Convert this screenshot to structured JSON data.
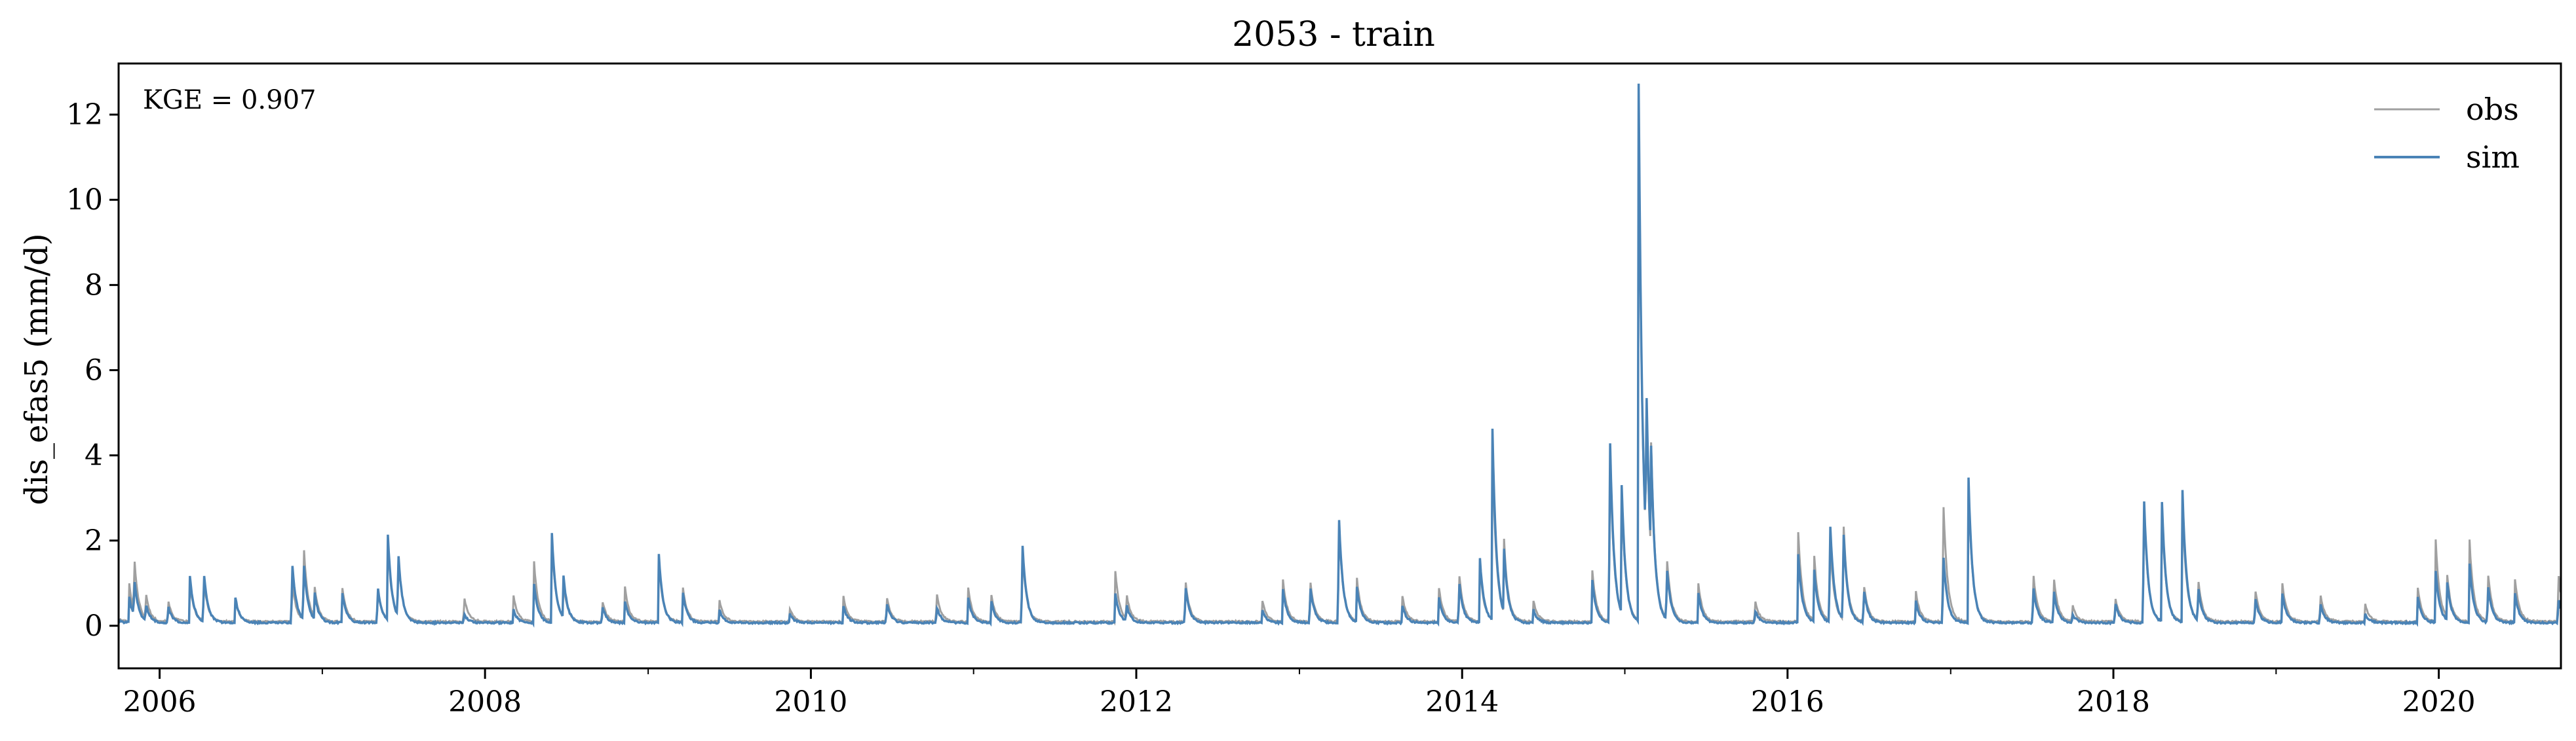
{
  "chart_data": {
    "type": "line",
    "title": "2053 - train",
    "xlabel": "",
    "ylabel": "dis_efas5 (mm/d)",
    "annotation": "KGE = 0.907",
    "xlim": [
      "2005-10-01",
      "2020-10-01"
    ],
    "ylim": [
      -1,
      13.2
    ],
    "x_ticks": [
      "2006",
      "2008",
      "2010",
      "2012",
      "2014",
      "2016",
      "2018",
      "2020"
    ],
    "y_ticks": [
      0,
      2,
      4,
      6,
      8,
      10,
      12
    ],
    "grid": false,
    "legend_position": "top-right",
    "series": [
      {
        "name": "obs",
        "color": "#a0a0a0",
        "baseline": 0.08,
        "points": [
          [
            "2005-10-01",
            0.05
          ],
          [
            "2005-10-25",
            0.9
          ],
          [
            "2005-11-05",
            1.3
          ],
          [
            "2005-12-01",
            0.6
          ],
          [
            "2006-01-20",
            0.5
          ],
          [
            "2006-03-10",
            0.9
          ],
          [
            "2006-04-10",
            1.0
          ],
          [
            "2006-06-20",
            0.5
          ],
          [
            "2006-10-25",
            1.0
          ],
          [
            "2006-11-20",
            1.8
          ],
          [
            "2006-12-15",
            0.7
          ],
          [
            "2007-02-15",
            0.8
          ],
          [
            "2007-05-05",
            0.8
          ],
          [
            "2007-05-28",
            1.8
          ],
          [
            "2007-06-20",
            1.5
          ],
          [
            "2007-11-15",
            0.6
          ],
          [
            "2008-03-05",
            0.6
          ],
          [
            "2008-04-20",
            1.4
          ],
          [
            "2008-05-30",
            1.9
          ],
          [
            "2008-06-25",
            0.8
          ],
          [
            "2008-09-20",
            0.5
          ],
          [
            "2008-11-10",
            0.8
          ],
          [
            "2009-01-25",
            1.4
          ],
          [
            "2009-03-20",
            0.8
          ],
          [
            "2009-06-10",
            0.5
          ],
          [
            "2009-11-15",
            0.3
          ],
          [
            "2010-03-15",
            0.6
          ],
          [
            "2010-06-20",
            0.6
          ],
          [
            "2010-10-10",
            0.7
          ],
          [
            "2010-12-20",
            0.8
          ],
          [
            "2011-02-10",
            0.6
          ],
          [
            "2011-04-20",
            1.8
          ],
          [
            "2011-11-15",
            1.2
          ],
          [
            "2011-12-10",
            0.6
          ],
          [
            "2012-04-20",
            1.0
          ],
          [
            "2012-10-10",
            0.5
          ],
          [
            "2012-11-25",
            1.0
          ],
          [
            "2013-01-25",
            1.0
          ],
          [
            "2013-03-30",
            2.5
          ],
          [
            "2013-05-10",
            1.0
          ],
          [
            "2013-08-20",
            0.6
          ],
          [
            "2013-11-10",
            0.8
          ],
          [
            "2013-12-25",
            1.2
          ],
          [
            "2014-02-10",
            1.3
          ],
          [
            "2014-03-10",
            4.0
          ],
          [
            "2014-04-05",
            1.7
          ],
          [
            "2014-06-10",
            0.5
          ],
          [
            "2014-10-20",
            1.2
          ],
          [
            "2014-11-28",
            4.3
          ],
          [
            "2014-12-25",
            2.8
          ],
          [
            "2015-02-01",
            12.3
          ],
          [
            "2015-02-18",
            3.6
          ],
          [
            "2015-03-01",
            2.6
          ],
          [
            "2015-04-05",
            1.5
          ],
          [
            "2015-06-15",
            0.9
          ],
          [
            "2015-10-20",
            0.5
          ],
          [
            "2016-01-25",
            2.1
          ],
          [
            "2016-03-01",
            1.5
          ],
          [
            "2016-04-05",
            2.0
          ],
          [
            "2016-05-05",
            2.4
          ],
          [
            "2016-06-20",
            0.9
          ],
          [
            "2016-10-15",
            0.7
          ],
          [
            "2016-12-15",
            3.0
          ],
          [
            "2017-02-10",
            3.2
          ],
          [
            "2017-07-05",
            1.2
          ],
          [
            "2017-08-20",
            1.1
          ],
          [
            "2017-10-01",
            0.4
          ],
          [
            "2018-01-05",
            0.6
          ],
          [
            "2018-03-10",
            3.0
          ],
          [
            "2018-04-20",
            2.6
          ],
          [
            "2018-06-05",
            2.7
          ],
          [
            "2018-07-10",
            1.0
          ],
          [
            "2018-11-15",
            0.8
          ],
          [
            "2019-01-15",
            0.9
          ],
          [
            "2019-04-10",
            0.7
          ],
          [
            "2019-07-20",
            0.4
          ],
          [
            "2019-11-15",
            0.8
          ],
          [
            "2019-12-25",
            1.9
          ],
          [
            "2020-01-20",
            1.0
          ],
          [
            "2020-03-10",
            1.9
          ],
          [
            "2020-04-20",
            1.2
          ],
          [
            "2020-06-20",
            1.0
          ],
          [
            "2020-09-25",
            1.2
          ]
        ]
      },
      {
        "name": "sim",
        "color": "#4a83b6",
        "baseline": 0.05,
        "points": [
          [
            "2005-10-01",
            0.05
          ],
          [
            "2005-10-25",
            0.6
          ],
          [
            "2005-11-05",
            0.9
          ],
          [
            "2005-12-01",
            0.4
          ],
          [
            "2006-01-20",
            0.4
          ],
          [
            "2006-03-10",
            1.1
          ],
          [
            "2006-04-10",
            1.2
          ],
          [
            "2006-06-20",
            0.6
          ],
          [
            "2006-10-25",
            1.5
          ],
          [
            "2006-11-20",
            1.4
          ],
          [
            "2006-12-15",
            0.6
          ],
          [
            "2007-02-15",
            0.7
          ],
          [
            "2007-05-05",
            0.9
          ],
          [
            "2007-05-28",
            2.0
          ],
          [
            "2007-06-20",
            1.6
          ],
          [
            "2007-11-15",
            0.2
          ],
          [
            "2008-03-05",
            0.3
          ],
          [
            "2008-04-20",
            0.9
          ],
          [
            "2008-05-30",
            2.1
          ],
          [
            "2008-06-25",
            1.0
          ],
          [
            "2008-09-20",
            0.4
          ],
          [
            "2008-11-10",
            0.5
          ],
          [
            "2009-01-25",
            1.6
          ],
          [
            "2009-03-20",
            0.7
          ],
          [
            "2009-06-10",
            0.3
          ],
          [
            "2009-11-15",
            0.2
          ],
          [
            "2010-03-15",
            0.4
          ],
          [
            "2010-06-20",
            0.5
          ],
          [
            "2010-10-10",
            0.4
          ],
          [
            "2010-12-20",
            0.6
          ],
          [
            "2011-02-10",
            0.5
          ],
          [
            "2011-04-20",
            2.0
          ],
          [
            "2011-11-15",
            0.7
          ],
          [
            "2011-12-10",
            0.4
          ],
          [
            "2012-04-20",
            0.9
          ],
          [
            "2012-10-10",
            0.3
          ],
          [
            "2012-11-25",
            0.8
          ],
          [
            "2013-01-25",
            0.9
          ],
          [
            "2013-03-30",
            2.7
          ],
          [
            "2013-05-10",
            0.8
          ],
          [
            "2013-08-20",
            0.4
          ],
          [
            "2013-11-10",
            0.6
          ],
          [
            "2013-12-25",
            1.0
          ],
          [
            "2014-02-10",
            1.5
          ],
          [
            "2014-03-10",
            4.5
          ],
          [
            "2014-04-05",
            1.5
          ],
          [
            "2014-06-10",
            0.3
          ],
          [
            "2014-10-20",
            1.0
          ],
          [
            "2014-11-28",
            4.7
          ],
          [
            "2014-12-25",
            3.0
          ],
          [
            "2015-02-01",
            12.6
          ],
          [
            "2015-02-18",
            4.0
          ],
          [
            "2015-03-01",
            2.4
          ],
          [
            "2015-04-05",
            1.3
          ],
          [
            "2015-06-15",
            0.7
          ],
          [
            "2015-10-20",
            0.3
          ],
          [
            "2016-01-25",
            1.6
          ],
          [
            "2016-03-01",
            1.2
          ],
          [
            "2016-04-05",
            2.5
          ],
          [
            "2016-05-05",
            2.2
          ],
          [
            "2016-06-20",
            0.8
          ],
          [
            "2016-10-15",
            0.5
          ],
          [
            "2016-12-15",
            1.7
          ],
          [
            "2017-02-10",
            3.4
          ],
          [
            "2017-07-05",
            0.9
          ],
          [
            "2017-08-20",
            0.8
          ],
          [
            "2017-10-01",
            0.2
          ],
          [
            "2018-01-05",
            0.5
          ],
          [
            "2018-03-10",
            3.2
          ],
          [
            "2018-04-20",
            2.8
          ],
          [
            "2018-06-05",
            3.1
          ],
          [
            "2018-07-10",
            0.8
          ],
          [
            "2018-11-15",
            0.6
          ],
          [
            "2019-01-15",
            0.7
          ],
          [
            "2019-04-10",
            0.5
          ],
          [
            "2019-07-20",
            0.2
          ],
          [
            "2019-11-15",
            0.6
          ],
          [
            "2019-12-25",
            1.2
          ],
          [
            "2020-01-20",
            0.9
          ],
          [
            "2020-03-10",
            1.4
          ],
          [
            "2020-04-20",
            0.9
          ],
          [
            "2020-06-20",
            0.7
          ],
          [
            "2020-09-25",
            0.6
          ]
        ]
      }
    ]
  }
}
